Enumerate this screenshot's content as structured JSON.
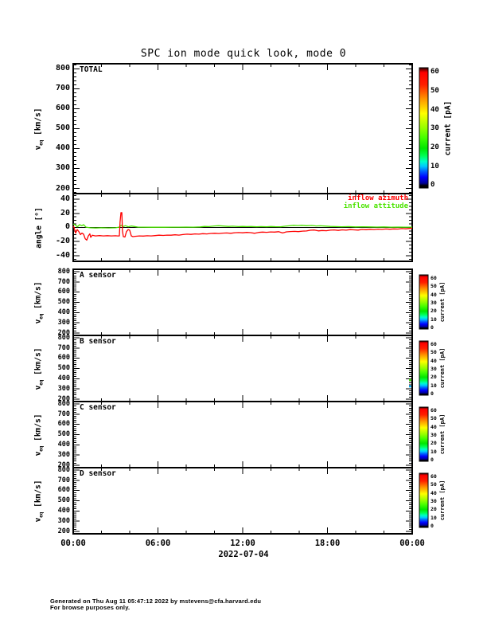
{
  "title": "SPC ion mode quick look, mode 0",
  "x_axis": {
    "labels": [
      "00:00",
      "06:00",
      "12:00",
      "18:00",
      "00:00"
    ],
    "label_hours": [
      0,
      6,
      12,
      18,
      24
    ],
    "date": "2022-07-04",
    "span_hours": 24,
    "major_tick_hours": 6,
    "minor_tick_hours": 2
  },
  "colorbar": {
    "label": "current [pA]",
    "ticks": [
      0,
      10,
      20,
      30,
      40,
      50,
      60
    ],
    "gradient_stops": [
      [
        0,
        "#000000"
      ],
      [
        2,
        "#000000"
      ],
      [
        4,
        "#000096"
      ],
      [
        9,
        "#0000ff"
      ],
      [
        14,
        "#0064ff"
      ],
      [
        18,
        "#00c8ff"
      ],
      [
        22,
        "#00ffc8"
      ],
      [
        27,
        "#00ff50"
      ],
      [
        33,
        "#00e600"
      ],
      [
        42,
        "#46ff00"
      ],
      [
        50,
        "#96ff00"
      ],
      [
        57,
        "#d2ff00"
      ],
      [
        62,
        "#ffff00"
      ],
      [
        68,
        "#ffc800"
      ],
      [
        74,
        "#ff9600"
      ],
      [
        80,
        "#ff5a00"
      ],
      [
        86,
        "#ff1e00"
      ],
      [
        96,
        "#ff0000"
      ],
      [
        97.5,
        "#b40000"
      ],
      [
        100,
        "#1e0000"
      ]
    ]
  },
  "panels": [
    {
      "label": "TOTAL",
      "ylabel_main": "v",
      "ylabel_sub": "eq",
      "ylabel_unit": " [km/s]",
      "ylim": [
        175,
        825
      ],
      "yticks": [
        200,
        300,
        400,
        500,
        600,
        700,
        800
      ],
      "minor_step": 20,
      "has_colorbar": true
    },
    {
      "label": "",
      "ylabel_main": "angle",
      "ylabel_sub": "",
      "ylabel_unit": " [°]",
      "ylim": [
        -48,
        48
      ],
      "yticks": [
        -40,
        -20,
        0,
        20,
        40
      ],
      "minor_step": 5,
      "has_colorbar": false,
      "zero_line": true
    },
    {
      "label": "A sensor",
      "ylabel_main": "v",
      "ylabel_sub": "eq",
      "ylabel_unit": " [km/s]",
      "ylim": [
        175,
        825
      ],
      "yticks": [
        200,
        300,
        400,
        500,
        600,
        700,
        800
      ],
      "minor_step": 20,
      "has_colorbar": true
    },
    {
      "label": "B sensor",
      "ylabel_main": "v",
      "ylabel_sub": "eq",
      "ylabel_unit": " [km/s]",
      "ylim": [
        175,
        825
      ],
      "yticks": [
        200,
        300,
        400,
        500,
        600,
        700,
        800
      ],
      "minor_step": 20,
      "has_colorbar": true
    },
    {
      "label": "C sensor",
      "ylabel_main": "v",
      "ylabel_sub": "eq",
      "ylabel_unit": " [km/s]",
      "ylim": [
        175,
        825
      ],
      "yticks": [
        200,
        300,
        400,
        500,
        600,
        700,
        800
      ],
      "minor_step": 20,
      "has_colorbar": true
    },
    {
      "label": "D sensor",
      "ylabel_main": "v",
      "ylabel_sub": "eq",
      "ylabel_unit": " [km/s]",
      "ylim": [
        175,
        825
      ],
      "yticks": [
        200,
        300,
        400,
        500,
        600,
        700,
        800
      ],
      "minor_step": 20,
      "has_colorbar": true
    }
  ],
  "legend": {
    "items": [
      {
        "label": "inflow azimuth",
        "color": "#ff0000"
      },
      {
        "label": "inflow attitude",
        "color": "#4be400"
      }
    ]
  },
  "footer": {
    "line1": "Generated on Thu Aug 11 05:47:12 2022 by mstevens@cfa.harvard.edu",
    "line2": "For browse purposes only."
  },
  "chart_data": [
    {
      "type": "heatmap",
      "panel": "TOTAL",
      "ylabel": "v_eq [km/s]",
      "ylim": [
        175,
        825
      ],
      "yticks": [
        200,
        300,
        400,
        500,
        600,
        700,
        800
      ],
      "colorbar": {
        "label": "current [pA]",
        "range": [
          0,
          60
        ],
        "ticks": [
          0,
          10,
          20,
          30,
          40,
          50,
          60
        ]
      },
      "values": []
    },
    {
      "type": "line",
      "panel": "angle",
      "ylabel": "angle [°]",
      "ylim": [
        -48,
        48
      ],
      "yticks": [
        -40,
        -20,
        0,
        20,
        40
      ],
      "zero_line": true,
      "xlim_hours": [
        0,
        24
      ],
      "series": [
        {
          "name": "inflow azimuth",
          "color": "#ff0000",
          "points": [
            [
              0.0,
              2
            ],
            [
              0.06,
              0
            ],
            [
              0.17,
              -8
            ],
            [
              0.28,
              -3
            ],
            [
              0.39,
              -5.5
            ],
            [
              0.51,
              -10
            ],
            [
              0.62,
              -8
            ],
            [
              0.73,
              -9.5
            ],
            [
              0.85,
              -16
            ],
            [
              0.96,
              -18
            ],
            [
              1.07,
              -12
            ],
            [
              1.18,
              -9
            ],
            [
              1.24,
              -14
            ],
            [
              1.35,
              -11
            ],
            [
              1.58,
              -12
            ],
            [
              1.86,
              -11.5
            ],
            [
              2.14,
              -12
            ],
            [
              2.42,
              -11.6
            ],
            [
              2.7,
              -12
            ],
            [
              2.99,
              -11.8
            ],
            [
              3.15,
              -12
            ],
            [
              3.27,
              -12
            ],
            [
              3.32,
              8
            ],
            [
              3.38,
              21
            ],
            [
              3.44,
              21
            ],
            [
              3.49,
              -5
            ],
            [
              3.55,
              -13
            ],
            [
              3.66,
              -13.5
            ],
            [
              3.77,
              -6
            ],
            [
              3.89,
              -3
            ],
            [
              4.0,
              -4
            ],
            [
              4.11,
              -12
            ],
            [
              4.23,
              -13
            ],
            [
              4.39,
              -12.5
            ],
            [
              4.68,
              -12
            ],
            [
              4.96,
              -12.2
            ],
            [
              5.24,
              -11.8
            ],
            [
              5.52,
              -12
            ],
            [
              5.8,
              -11.5
            ],
            [
              6.08,
              -11
            ],
            [
              6.37,
              -11.3
            ],
            [
              6.65,
              -10.8
            ],
            [
              6.93,
              -11
            ],
            [
              7.21,
              -10.4
            ],
            [
              7.49,
              -10.8
            ],
            [
              7.77,
              -10
            ],
            [
              8.06,
              -9.5
            ],
            [
              8.34,
              -9.8
            ],
            [
              8.62,
              -9.2
            ],
            [
              8.9,
              -9.5
            ],
            [
              9.18,
              -8.8
            ],
            [
              9.46,
              -9.1
            ],
            [
              9.75,
              -8.5
            ],
            [
              10.03,
              -8.2
            ],
            [
              10.31,
              -8.6
            ],
            [
              10.59,
              -8
            ],
            [
              10.87,
              -7.8
            ],
            [
              11.15,
              -8.3
            ],
            [
              11.44,
              -7.5
            ],
            [
              11.72,
              -7.2
            ],
            [
              12.0,
              -7.6
            ],
            [
              12.28,
              -7
            ],
            [
              12.56,
              -7.3
            ],
            [
              12.85,
              -8.3
            ],
            [
              13.13,
              -7
            ],
            [
              13.41,
              -6.5
            ],
            [
              13.69,
              -6.9
            ],
            [
              13.97,
              -6.3
            ],
            [
              14.25,
              -6.6
            ],
            [
              14.54,
              -6
            ],
            [
              14.82,
              -7.8
            ],
            [
              15.1,
              -6.2
            ],
            [
              15.38,
              -5.8
            ],
            [
              15.66,
              -5.5
            ],
            [
              15.94,
              -5.9
            ],
            [
              16.23,
              -5.2
            ],
            [
              16.51,
              -5
            ],
            [
              16.79,
              -4
            ],
            [
              17.07,
              -3.6
            ],
            [
              17.35,
              -4.8
            ],
            [
              17.63,
              -4.3
            ],
            [
              17.92,
              -4.6
            ],
            [
              18.2,
              -3.8
            ],
            [
              18.48,
              -3.5
            ],
            [
              18.76,
              -4.2
            ],
            [
              19.04,
              -3.4
            ],
            [
              19.32,
              -3.8
            ],
            [
              19.61,
              -3
            ],
            [
              19.89,
              -3.4
            ],
            [
              20.17,
              -3.7
            ],
            [
              20.45,
              -2.8
            ],
            [
              20.73,
              -3.2
            ],
            [
              21.01,
              -2.6
            ],
            [
              21.3,
              -2.9
            ],
            [
              21.58,
              -2.4
            ],
            [
              21.86,
              -2.7
            ],
            [
              22.14,
              -2.2
            ],
            [
              22.42,
              -2.5
            ],
            [
              22.7,
              -2
            ],
            [
              22.99,
              -2.3
            ],
            [
              23.27,
              -1.6
            ],
            [
              23.55,
              -1.9
            ],
            [
              23.83,
              -1.3
            ],
            [
              24.0,
              -1
            ]
          ]
        },
        {
          "name": "inflow attitude",
          "color": "#4be400",
          "points": [
            [
              0.0,
              5
            ],
            [
              0.15,
              3.5
            ],
            [
              0.3,
              1
            ],
            [
              0.45,
              4
            ],
            [
              0.6,
              2.5
            ],
            [
              0.73,
              4
            ],
            [
              0.9,
              0.5
            ],
            [
              1.2,
              -0.5
            ],
            [
              1.6,
              -0.8
            ],
            [
              2.0,
              -0.5
            ],
            [
              2.5,
              -0.7
            ],
            [
              3.0,
              -0.5
            ],
            [
              3.25,
              0.5
            ],
            [
              3.4,
              3
            ],
            [
              3.55,
              1.5
            ],
            [
              3.7,
              2.5
            ],
            [
              3.9,
              1
            ],
            [
              4.1,
              2
            ],
            [
              4.3,
              1.5
            ],
            [
              4.6,
              0.5
            ],
            [
              5.0,
              0.5
            ],
            [
              5.5,
              0.3
            ],
            [
              6.0,
              0.5
            ],
            [
              6.5,
              0.3
            ],
            [
              7.0,
              0.5
            ],
            [
              7.5,
              0.4
            ],
            [
              8.0,
              0.6
            ],
            [
              8.5,
              0.5
            ],
            [
              9.0,
              0.8
            ],
            [
              9.3,
              1.5
            ],
            [
              9.6,
              1.2
            ],
            [
              10.0,
              2.2
            ],
            [
              10.3,
              2.5
            ],
            [
              10.6,
              2
            ],
            [
              11.0,
              1.5
            ],
            [
              11.3,
              1.8
            ],
            [
              11.7,
              1.2
            ],
            [
              12.0,
              1.5
            ],
            [
              12.3,
              1.2
            ],
            [
              12.6,
              1.4
            ],
            [
              13.0,
              1
            ],
            [
              13.3,
              1.2
            ],
            [
              13.7,
              1
            ],
            [
              14.0,
              1.4
            ],
            [
              14.3,
              1.1
            ],
            [
              14.7,
              1
            ],
            [
              15.0,
              1.8
            ],
            [
              15.3,
              2.4
            ],
            [
              15.6,
              3
            ],
            [
              15.9,
              2.7
            ],
            [
              16.2,
              3
            ],
            [
              16.5,
              2.5
            ],
            [
              16.9,
              2.8
            ],
            [
              17.2,
              2.2
            ],
            [
              17.5,
              2.4
            ],
            [
              17.8,
              2
            ],
            [
              18.2,
              1.5
            ],
            [
              18.6,
              1.2
            ],
            [
              19.0,
              1
            ],
            [
              19.5,
              1.2
            ],
            [
              20.0,
              0.8
            ],
            [
              20.5,
              1
            ],
            [
              21.0,
              0.8
            ],
            [
              21.5,
              0.6
            ],
            [
              22.0,
              0.8
            ],
            [
              22.5,
              0.5
            ],
            [
              23.0,
              0.6
            ],
            [
              23.5,
              0.4
            ],
            [
              24.0,
              0.5
            ]
          ]
        }
      ]
    },
    {
      "type": "heatmap",
      "panel": "A sensor",
      "ylabel": "v_eq [km/s]",
      "ylim": [
        175,
        825
      ],
      "yticks": [
        200,
        300,
        400,
        500,
        600,
        700,
        800
      ],
      "colorbar": {
        "label": "current [pA]",
        "range": [
          0,
          60
        ],
        "ticks": [
          0,
          10,
          20,
          30,
          40,
          50,
          60
        ]
      },
      "values": []
    },
    {
      "type": "heatmap",
      "panel": "B sensor",
      "ylabel": "v_eq [km/s]",
      "ylim": [
        175,
        825
      ],
      "yticks": [
        200,
        300,
        400,
        500,
        600,
        700,
        800
      ],
      "colorbar": {
        "label": "current [pA]",
        "range": [
          0,
          60
        ],
        "ticks": [
          0,
          10,
          20,
          30,
          40,
          50,
          60
        ]
      },
      "values": [],
      "edge_points": [
        {
          "hours": 23.85,
          "v_eq": 387,
          "color": "#3ce800"
        },
        {
          "hours": 23.85,
          "v_eq": 324,
          "color": "#00b4ff"
        }
      ]
    },
    {
      "type": "heatmap",
      "panel": "C sensor",
      "ylabel": "v_eq [km/s]",
      "ylim": [
        175,
        825
      ],
      "yticks": [
        200,
        300,
        400,
        500,
        600,
        700,
        800
      ],
      "colorbar": {
        "label": "current [pA]",
        "range": [
          0,
          60
        ],
        "ticks": [
          0,
          10,
          20,
          30,
          40,
          50,
          60
        ]
      },
      "values": []
    },
    {
      "type": "heatmap",
      "panel": "D sensor",
      "ylabel": "v_eq [km/s]",
      "ylim": [
        175,
        825
      ],
      "yticks": [
        200,
        300,
        400,
        500,
        600,
        700,
        800
      ],
      "colorbar": {
        "label": "current [pA]",
        "range": [
          0,
          60
        ],
        "ticks": [
          0,
          10,
          20,
          30,
          40,
          50,
          60
        ]
      },
      "values": []
    }
  ]
}
